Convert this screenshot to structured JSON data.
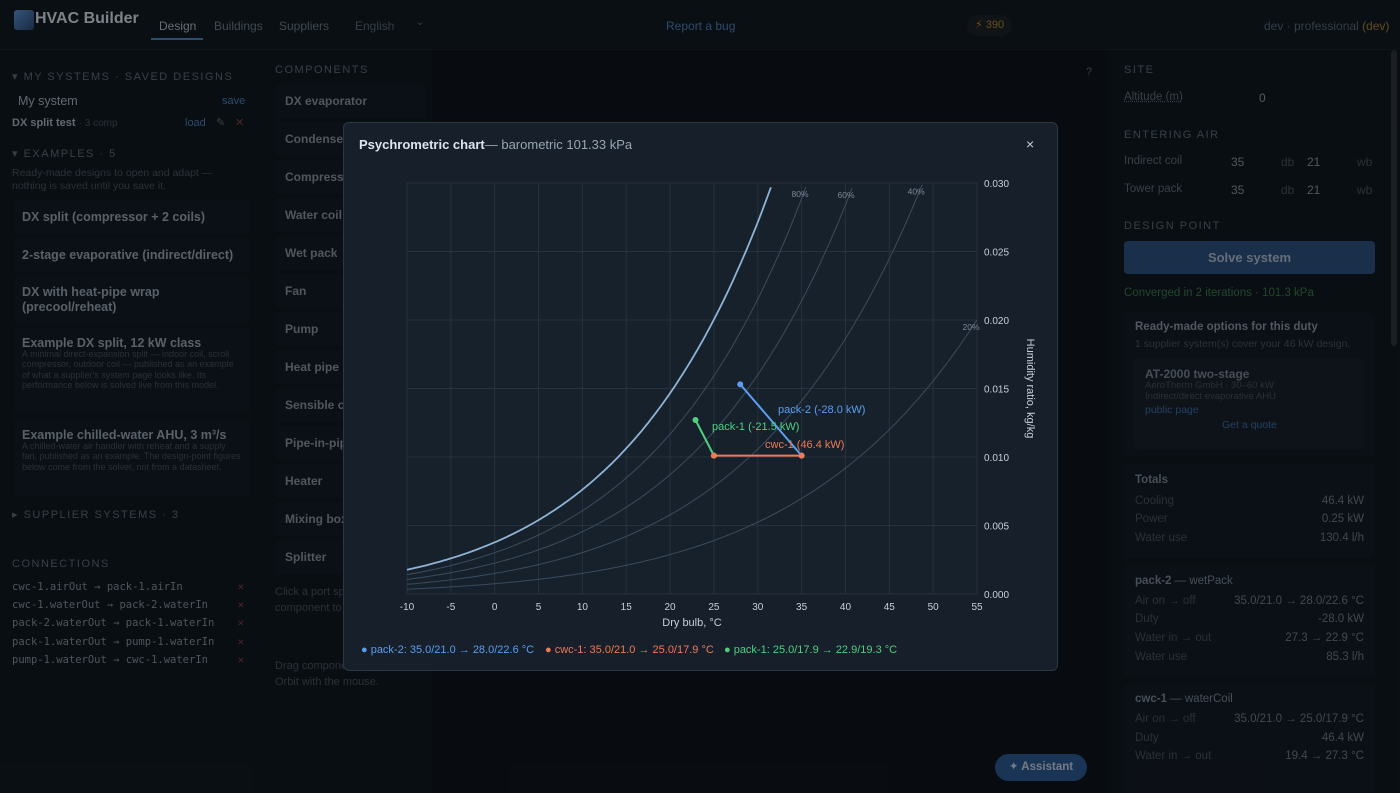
{
  "header": {
    "app_title": "HVAC Builder",
    "tabs": [
      "Design",
      "Buildings",
      "Suppliers"
    ],
    "language": "English",
    "report_bug": "Report a bug",
    "credits": "⚡ 390",
    "user": "dev · professional",
    "user_tag": "(dev)"
  },
  "left": {
    "my_systems_head": "▾ MY SYSTEMS · SAVED DESIGNS",
    "my_system_label": "My system",
    "save_label": "save",
    "saved": {
      "name": "DX split test",
      "meta": "· 3 comp",
      "load": "load"
    },
    "examples_head": "▾ EXAMPLES · 5",
    "examples_note": "Ready-made designs to open and adapt — nothing is saved until you save it.",
    "examples": [
      {
        "title": "DX split (compressor + 2 coils)",
        "desc": ""
      },
      {
        "title": "2-stage evaporative (indirect/direct)",
        "desc": ""
      },
      {
        "title": "DX with heat-pipe wrap (precool/reheat)",
        "desc": ""
      },
      {
        "title": "Example DX split, 12 kW class",
        "desc": "A minimal direct-expansion split — indoor coil, scroll compressor, outdoor coil — published as an example of what a supplier's system page looks like. Its performance below is solved live from this model."
      },
      {
        "title": "Example chilled-water AHU, 3 m³/s",
        "desc": "A chilled-water air handler with reheat and a supply fan, published as an example. The design-point figures below come from the solver, not from a datasheet."
      }
    ],
    "supplier_head": "▸ SUPPLIER SYSTEMS · 3",
    "connections_head": "CONNECTIONS",
    "connections": [
      "cwc-1.airOut → pack-1.airIn",
      "cwc-1.waterOut → pack-2.waterIn",
      "pack-2.waterOut → pack-1.waterIn",
      "pack-1.waterOut → pump-1.waterIn",
      "pump-1.waterOut → cwc-1.waterIn"
    ]
  },
  "components": {
    "head": "COMPONENTS",
    "items": [
      "DX evaporator",
      "Condenser",
      "Compressor",
      "Water coil",
      "Wet pack",
      "Fan",
      "Pump",
      "Heat pipe",
      "Sensible c",
      "Pipe-in-pip",
      "Heater",
      "Mixing box",
      "Splitter"
    ],
    "note1": "Click a port sp matching por component to them.",
    "note2": "Drag compone floor plane. Orbit with the mouse."
  },
  "viewport": {
    "help": "?",
    "assistant": "✦ Assistant"
  },
  "right": {
    "site_head": "SITE",
    "altitude_label": "Altitude (m)",
    "altitude_value": "0",
    "entering_head": "ENTERING AIR",
    "entering": [
      {
        "label": "Indirect coil",
        "db": "35",
        "wb": "21"
      },
      {
        "label": "Tower pack",
        "db": "35",
        "wb": "21"
      }
    ],
    "db_label": "db",
    "wb_label": "wb",
    "design_head": "DESIGN POINT",
    "solve_label": "Solve system",
    "converged": "Converged in 2 iterations · 101.3 kPa",
    "ready": {
      "title": "Ready-made options for this duty",
      "sub": "1 supplier system(s) cover your 46 kW design.",
      "product_name": "AT-2000 two-stage",
      "product_meta": "AeroTherm GmbH · 30–60 kW",
      "product_desc": "Indirect/direct evaporative AHU",
      "public_page": "public page",
      "quote": "Get a quote"
    },
    "totals": {
      "title": "Totals",
      "rows": [
        {
          "k": "Cooling",
          "v": "46.4 kW"
        },
        {
          "k": "Power",
          "v": "0.25 kW"
        },
        {
          "k": "Water use",
          "v": "130.4 l/h"
        }
      ]
    },
    "pack2": {
      "title": "pack-2",
      "type": "— wetPack",
      "rows": [
        {
          "k": "Air on → off",
          "v": "35.0/21.0 → 28.0/22.6 °C"
        },
        {
          "k": "Duty",
          "v": "-28.0 kW"
        },
        {
          "k": "Water in → out",
          "v": "27.3 → 22.9 °C"
        },
        {
          "k": "Water use",
          "v": "85.3 l/h"
        }
      ]
    },
    "cwc1": {
      "title": "cwc-1",
      "type": "— waterCoil",
      "rows": [
        {
          "k": "Air on → off",
          "v": "35.0/21.0 → 25.0/17.9 °C"
        },
        {
          "k": "Duty",
          "v": "46.4 kW"
        },
        {
          "k": "Water in → out",
          "v": "19.4 → 27.3 °C"
        }
      ]
    }
  },
  "modal": {
    "title": "Psychrometric chart",
    "subtitle": "— barometric 101.33 kPa",
    "close": "×",
    "legend": [
      "● pack-2: 35.0/21.0 → 28.0/22.6 °C",
      "● cwc-1: 35.0/21.0 → 25.0/17.9 °C",
      "● pack-1: 25.0/17.9 → 22.9/19.3 °C"
    ]
  },
  "chart_data": {
    "type": "line",
    "title": "Psychrometric chart",
    "xlabel": "Dry bulb, °C",
    "ylabel": "Humidity ratio, kg/kg",
    "xlim": [
      -10,
      55
    ],
    "ylim": [
      0,
      0.03
    ],
    "xticks": [
      "-10",
      "-5",
      "0",
      "5",
      "10",
      "15",
      "20",
      "25",
      "30",
      "35",
      "40",
      "45",
      "50",
      "55"
    ],
    "yticks": [
      "0.000",
      "0.005",
      "0.010",
      "0.015",
      "0.020",
      "0.025",
      "0.030"
    ],
    "grid": true,
    "rh_curves": [
      {
        "label": "",
        "rh": 1.0
      },
      {
        "label": "80%",
        "rh": 0.8
      },
      {
        "label": "60%",
        "rh": 0.6
      },
      {
        "label": "40%",
        "rh": 0.4
      },
      {
        "label": "20%",
        "rh": 0.2
      }
    ],
    "processes": [
      {
        "name": "pack-2 (-28.0 kW)",
        "color": "#5b9ef0",
        "points": [
          [
            35,
            0.0101
          ],
          [
            28,
            0.0153
          ]
        ]
      },
      {
        "name": "pack-1 (-21.5 kW)",
        "color": "#4fcf7e",
        "points": [
          [
            25,
            0.0101
          ],
          [
            22.9,
            0.0127
          ]
        ]
      },
      {
        "name": "cwc-1 (46.4 kW)",
        "color": "#ee7a56",
        "points": [
          [
            35,
            0.0101
          ],
          [
            25,
            0.0101
          ]
        ]
      }
    ]
  }
}
